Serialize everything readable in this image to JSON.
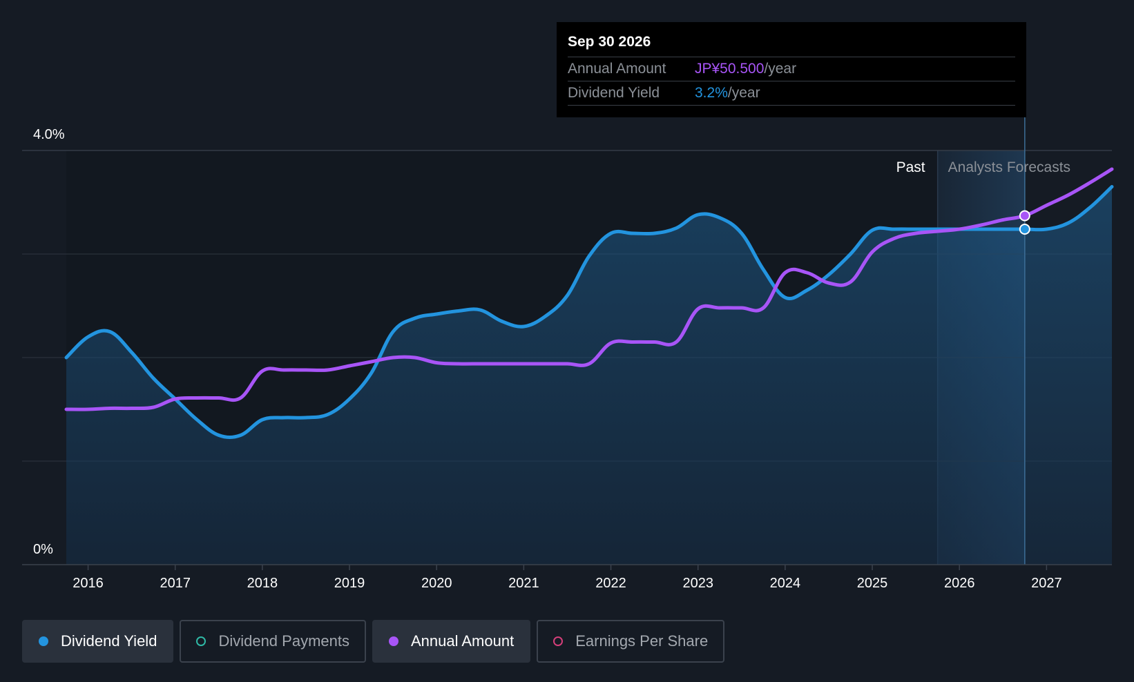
{
  "colors": {
    "background": "#151b24",
    "dividend_yield": "#2394df",
    "annual_amount": "#a855f7",
    "dividend_payments": "#2fb9a6",
    "earnings_per_share": "#d43f7a",
    "grid": "#2e3540"
  },
  "tooltip": {
    "date": "Sep 30 2026",
    "rows": [
      {
        "key": "Annual Amount",
        "value": "JP¥50.500",
        "unit": "/year"
      },
      {
        "key": "Dividend Yield",
        "value": "3.2%",
        "unit": "/year"
      }
    ]
  },
  "regions": {
    "past_label": "Past",
    "forecast_label": "Analysts Forecasts"
  },
  "legend": [
    {
      "label": "Dividend Yield",
      "active": true,
      "style": "filled",
      "color": "#2394df"
    },
    {
      "label": "Dividend Payments",
      "active": false,
      "style": "hollow",
      "color": "#2fb9a6"
    },
    {
      "label": "Annual Amount",
      "active": true,
      "style": "filled",
      "color": "#a855f7"
    },
    {
      "label": "Earnings Per Share",
      "active": false,
      "style": "hollow",
      "color": "#d43f7a"
    }
  ],
  "chart_data": {
    "type": "line",
    "title": "",
    "xlabel": "",
    "ylabel": "",
    "ylim": [
      0,
      4.0
    ],
    "xlim": [
      2015.75,
      2027.75
    ],
    "y_tick_labels": [
      "4.0%",
      "0%"
    ],
    "x_ticks": [
      2016,
      2017,
      2018,
      2019,
      2020,
      2021,
      2022,
      2023,
      2024,
      2025,
      2026,
      2027
    ],
    "x_tick_labels": [
      "2016",
      "2017",
      "2018",
      "2019",
      "2020",
      "2021",
      "2022",
      "2023",
      "2024",
      "2025",
      "2026",
      "2027"
    ],
    "gridlines_y": [
      1,
      2,
      3,
      4
    ],
    "forecast_start": 2025.75,
    "highlight_x": 2026.75,
    "series": [
      {
        "name": "Dividend Yield",
        "color": "#2394df",
        "fill": true,
        "x": [
          2015.75,
          2016.0,
          2016.25,
          2016.5,
          2016.75,
          2017.0,
          2017.25,
          2017.5,
          2017.75,
          2018.0,
          2018.25,
          2018.5,
          2018.75,
          2019.0,
          2019.25,
          2019.5,
          2019.75,
          2020.0,
          2020.25,
          2020.5,
          2020.75,
          2021.0,
          2021.25,
          2021.5,
          2021.75,
          2022.0,
          2022.25,
          2022.5,
          2022.75,
          2023.0,
          2023.25,
          2023.5,
          2023.75,
          2024.0,
          2024.25,
          2024.5,
          2024.75,
          2025.0,
          2025.25,
          2025.5,
          2025.75,
          2026.0,
          2026.25,
          2026.5,
          2026.75,
          2027.0,
          2027.25,
          2027.5,
          2027.75
        ],
        "values": [
          2.0,
          2.2,
          2.25,
          2.05,
          1.8,
          1.6,
          1.4,
          1.25,
          1.25,
          1.4,
          1.42,
          1.42,
          1.45,
          1.6,
          1.85,
          2.25,
          2.38,
          2.42,
          2.45,
          2.46,
          2.35,
          2.3,
          2.4,
          2.6,
          2.98,
          3.2,
          3.2,
          3.2,
          3.25,
          3.38,
          3.35,
          3.2,
          2.85,
          2.58,
          2.65,
          2.8,
          3.0,
          3.23,
          3.24,
          3.24,
          3.24,
          3.24,
          3.24,
          3.24,
          3.24,
          3.24,
          3.3,
          3.45,
          3.65
        ]
      },
      {
        "name": "Annual Amount",
        "color": "#a855f7",
        "fill": false,
        "x": [
          2015.75,
          2016.0,
          2016.25,
          2016.5,
          2016.75,
          2017.0,
          2017.25,
          2017.5,
          2017.75,
          2018.0,
          2018.25,
          2018.5,
          2018.75,
          2019.0,
          2019.25,
          2019.5,
          2019.75,
          2020.0,
          2020.25,
          2020.5,
          2020.75,
          2021.0,
          2021.25,
          2021.5,
          2021.75,
          2022.0,
          2022.25,
          2022.5,
          2022.75,
          2023.0,
          2023.25,
          2023.5,
          2023.75,
          2024.0,
          2024.25,
          2024.5,
          2024.75,
          2025.0,
          2025.25,
          2025.5,
          2025.75,
          2026.0,
          2026.25,
          2026.5,
          2026.75,
          2027.0,
          2027.25,
          2027.5,
          2027.75
        ],
        "values": [
          1.5,
          1.5,
          1.51,
          1.51,
          1.52,
          1.6,
          1.61,
          1.61,
          1.61,
          1.87,
          1.88,
          1.88,
          1.88,
          1.92,
          1.96,
          2.0,
          2.0,
          1.95,
          1.94,
          1.94,
          1.94,
          1.94,
          1.94,
          1.94,
          1.94,
          2.14,
          2.15,
          2.15,
          2.15,
          2.47,
          2.48,
          2.48,
          2.48,
          2.82,
          2.82,
          2.72,
          2.73,
          3.02,
          3.15,
          3.2,
          3.22,
          3.24,
          3.28,
          3.33,
          3.37,
          3.47,
          3.57,
          3.69,
          3.82
        ]
      }
    ]
  }
}
